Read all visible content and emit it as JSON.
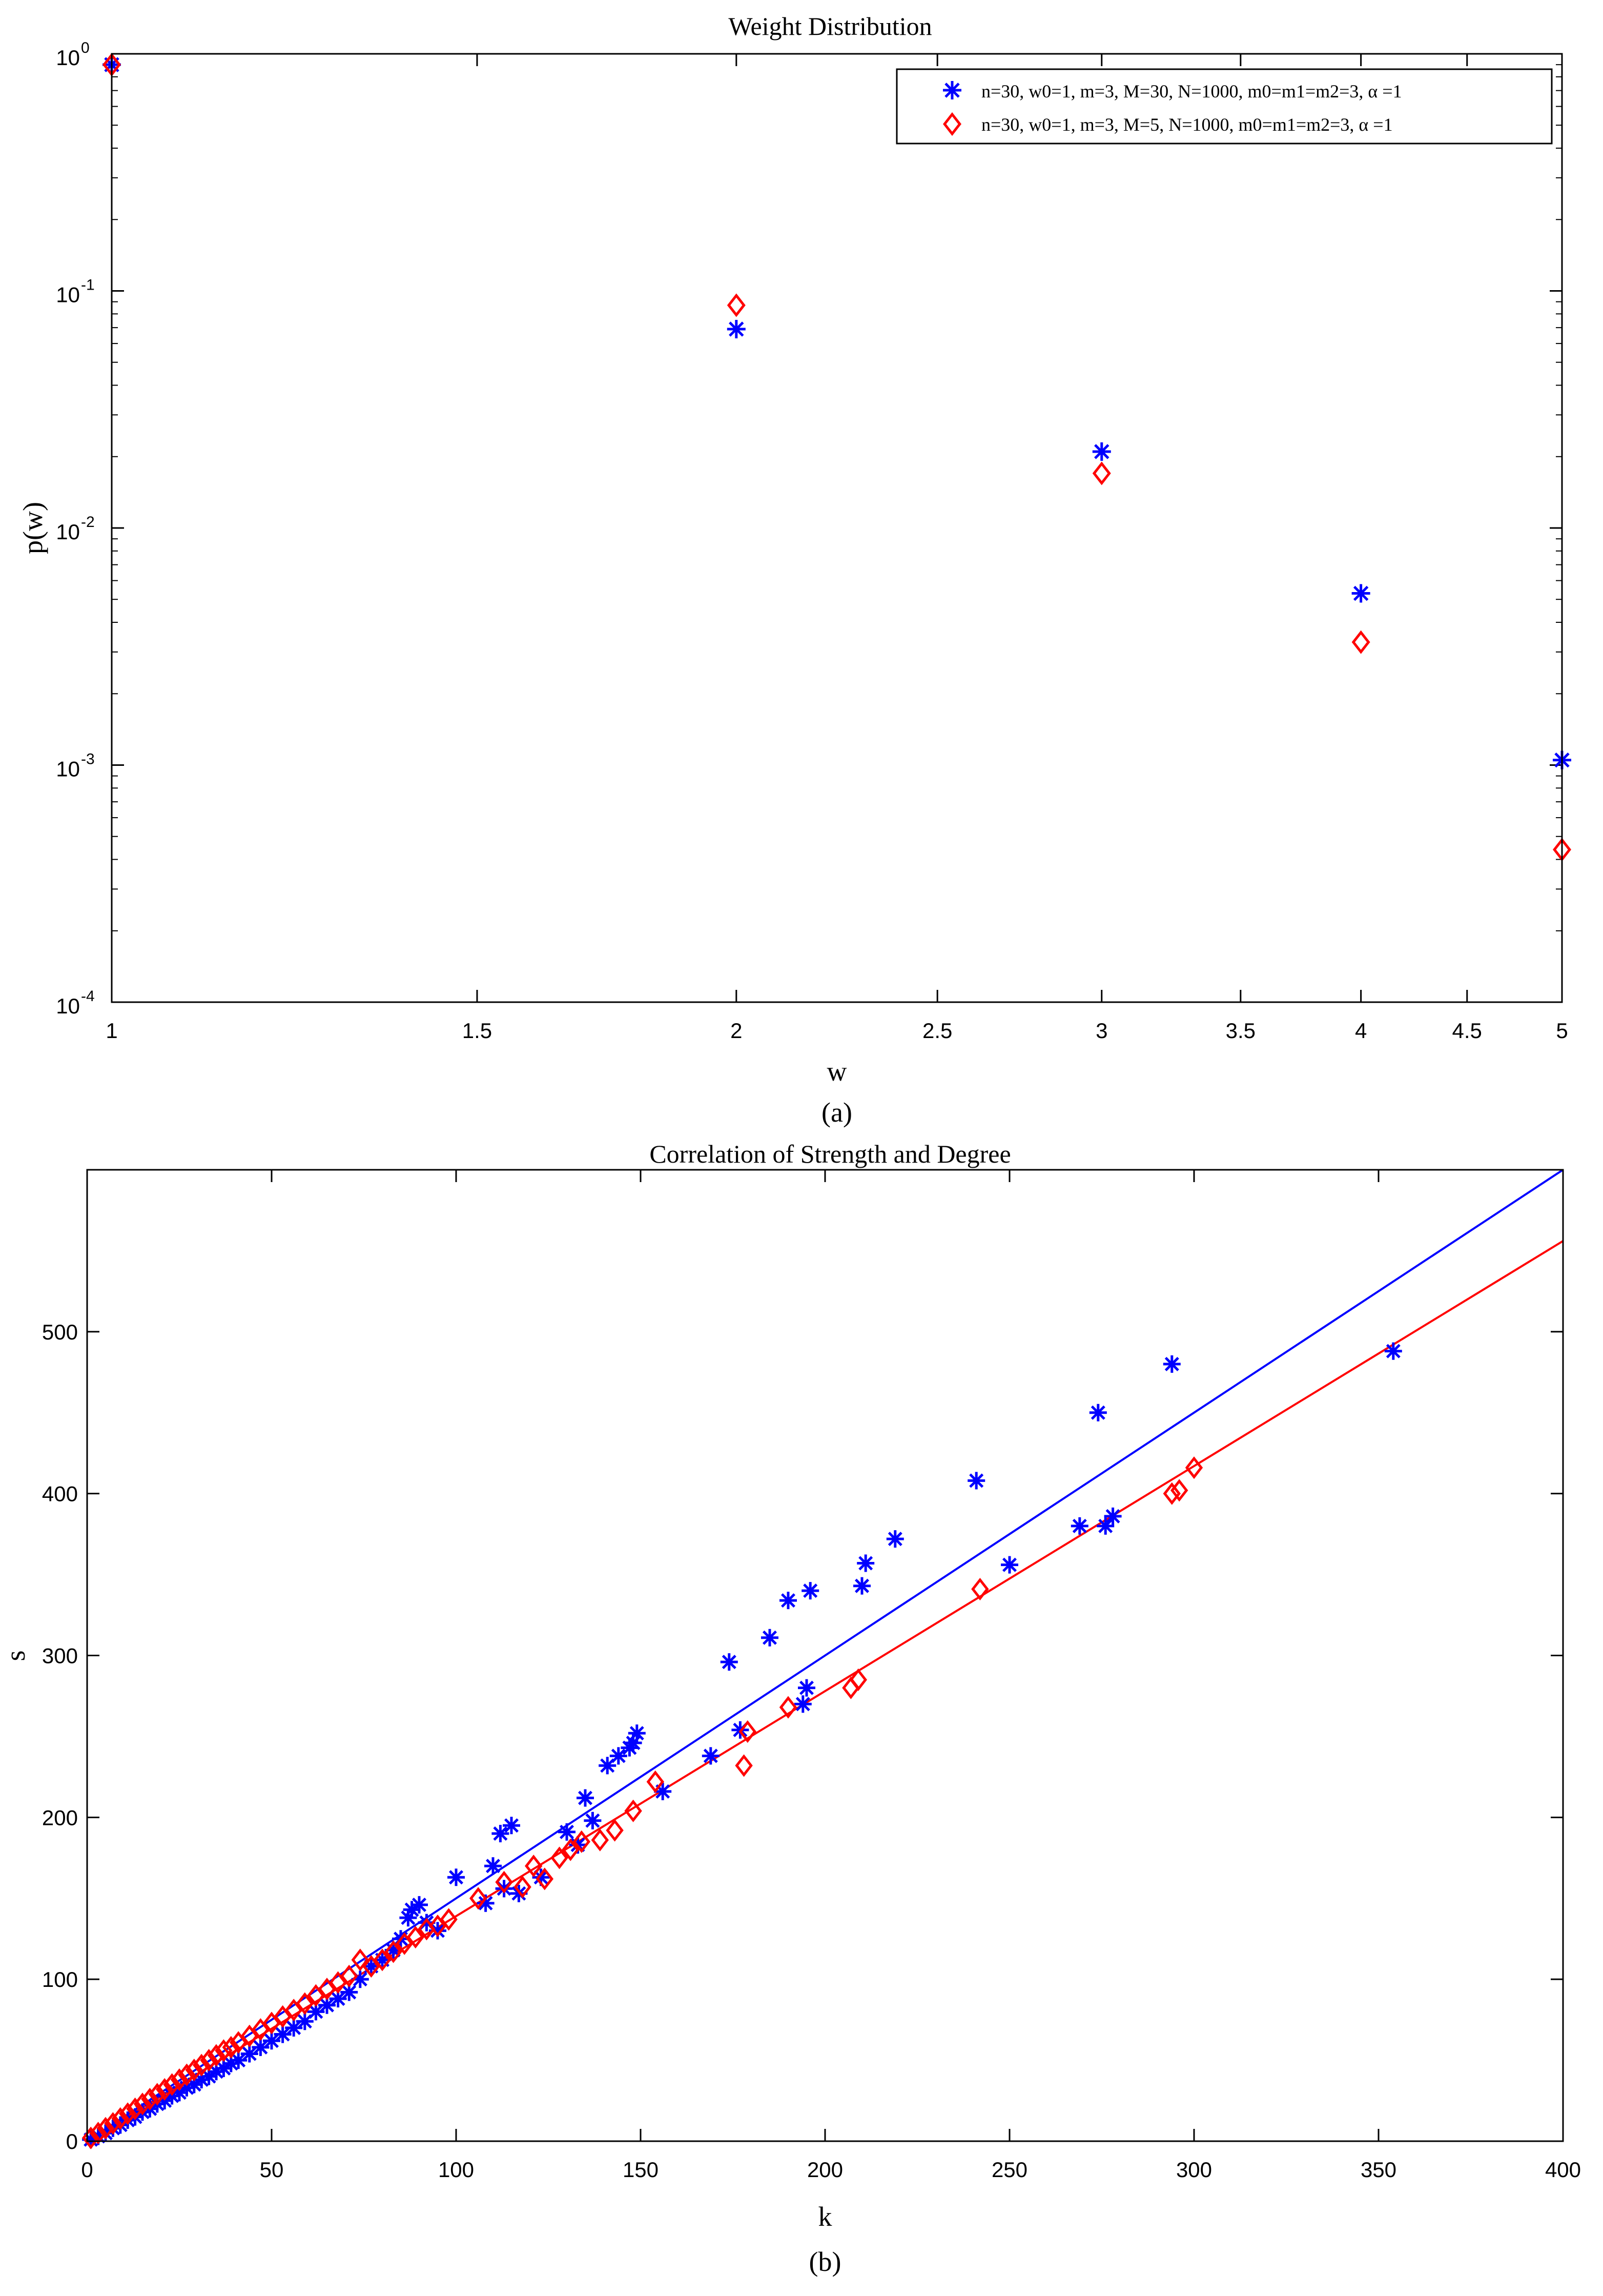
{
  "colors": {
    "series_blue": "#0000ff",
    "series_red": "#ff0000",
    "axis": "#000000",
    "background": "#ffffff"
  },
  "chart_data": [
    {
      "type": "scatter",
      "title": "Weight Distribution",
      "xlabel": "w",
      "ylabel": "p(w)",
      "caption": "(a)",
      "xscale": "log",
      "yscale": "log",
      "xlim": [
        1,
        5
      ],
      "ylim": [
        0.0001,
        1
      ],
      "xticks": [
        1,
        1.5,
        2,
        2.5,
        3,
        3.5,
        4,
        4.5,
        5
      ],
      "xtick_labels": [
        "1",
        "1.5",
        "2",
        "2.5",
        "3",
        "3.5",
        "4",
        "4.5",
        "5"
      ],
      "yticks": [
        0.0001,
        0.001,
        0.01,
        0.1,
        1
      ],
      "ytick_labels": [
        {
          "base": "10",
          "exp": "-4"
        },
        {
          "base": "10",
          "exp": "-3"
        },
        {
          "base": "10",
          "exp": "-2"
        },
        {
          "base": "10",
          "exp": "-1"
        },
        {
          "base": "10",
          "exp": "0"
        }
      ],
      "grid": false,
      "legend_position": "top-right",
      "series": [
        {
          "name": "n=30, w0=1, m=3, M=30, N=1000, m0=m1=m2=3,  α =1",
          "marker": "asterisk",
          "color": "#0000ff",
          "x": [
            1,
            2,
            3,
            4,
            5
          ],
          "y": [
            0.9,
            0.069,
            0.021,
            0.0053,
            0.00105
          ]
        },
        {
          "name": "n=30, w0=1, m=3, M=5, N=1000, m0=m1=m2=3,  α =1",
          "marker": "diamond",
          "color": "#ff0000",
          "x": [
            1,
            2,
            3,
            4,
            5
          ],
          "y": [
            0.9,
            0.087,
            0.017,
            0.0033,
            0.00044
          ]
        }
      ]
    },
    {
      "type": "scatter",
      "title": "Correlation of Strength and Degree",
      "xlabel": "k",
      "ylabel": "s",
      "caption": "(b)",
      "xlim": [
        0,
        400
      ],
      "ylim": [
        0,
        600
      ],
      "xticks": [
        0,
        50,
        100,
        150,
        200,
        250,
        300,
        350,
        400
      ],
      "xtick_labels": [
        "0",
        "50",
        "100",
        "150",
        "200",
        "250",
        "300",
        "350",
        "400"
      ],
      "yticks": [
        0,
        100,
        200,
        300,
        400,
        500
      ],
      "ytick_labels": [
        "0",
        "100",
        "200",
        "300",
        "400",
        "500"
      ],
      "grid": false,
      "series": [
        {
          "marker": "asterisk",
          "color": "#0000ff",
          "x": [
            1,
            3,
            5,
            7,
            9,
            11,
            13,
            15,
            17,
            19,
            21,
            23,
            25,
            27,
            29,
            31,
            33,
            35,
            37,
            39,
            41,
            44,
            47,
            50,
            53,
            56,
            59,
            62,
            65,
            68,
            71,
            74,
            77,
            80,
            83,
            85,
            87,
            88,
            90,
            92,
            95,
            100,
            108,
            110,
            112,
            113,
            115,
            117,
            123,
            130,
            133,
            135,
            137,
            141,
            144,
            147,
            148,
            149,
            156,
            169,
            174,
            177,
            185,
            190,
            194,
            195,
            196,
            210,
            211,
            219,
            241,
            250,
            269,
            274,
            276,
            278,
            294,
            354
          ],
          "y": [
            1,
            3,
            5,
            8,
            10,
            13,
            15,
            18,
            20,
            23,
            25,
            28,
            30,
            33,
            35,
            38,
            40,
            43,
            45,
            48,
            50,
            54,
            58,
            62,
            66,
            70,
            74,
            80,
            84,
            88,
            92,
            100,
            108,
            112,
            118,
            125,
            138,
            143,
            146,
            135,
            130,
            163,
            147,
            170,
            190,
            156,
            195,
            153,
            163,
            191,
            183,
            212,
            198,
            232,
            238,
            243,
            246,
            252,
            216,
            238,
            296,
            254,
            311,
            334,
            270,
            280,
            340,
            343,
            357,
            372,
            408,
            356,
            380,
            450,
            380,
            386,
            480,
            488
          ]
        },
        {
          "marker": "diamond",
          "color": "#ff0000",
          "x": [
            1,
            3,
            5,
            7,
            9,
            11,
            13,
            15,
            17,
            19,
            21,
            23,
            25,
            27,
            29,
            31,
            33,
            35,
            37,
            39,
            41,
            44,
            47,
            50,
            53,
            56,
            59,
            62,
            65,
            68,
            71,
            74,
            77,
            80,
            83,
            86,
            89,
            92,
            95,
            98,
            106,
            113,
            118,
            121,
            124,
            128,
            131,
            134,
            139,
            143,
            148,
            154,
            178,
            179,
            190,
            207,
            209,
            242,
            294,
            296,
            300
          ],
          "y": [
            2,
            5,
            8,
            11,
            14,
            17,
            20,
            23,
            26,
            29,
            32,
            35,
            38,
            41,
            44,
            47,
            50,
            53,
            56,
            58,
            61,
            65,
            69,
            73,
            77,
            81,
            85,
            90,
            94,
            98,
            102,
            112,
            108,
            112,
            117,
            122,
            126,
            131,
            133,
            137,
            150,
            160,
            157,
            170,
            162,
            175,
            180,
            185,
            186,
            192,
            204,
            222,
            232,
            253,
            268,
            280,
            285,
            341,
            400,
            402,
            416
          ]
        }
      ],
      "fit_lines": [
        {
          "color": "#0000ff",
          "slope": 1.5
        },
        {
          "color": "#ff0000",
          "slope": 1.39
        }
      ]
    }
  ]
}
